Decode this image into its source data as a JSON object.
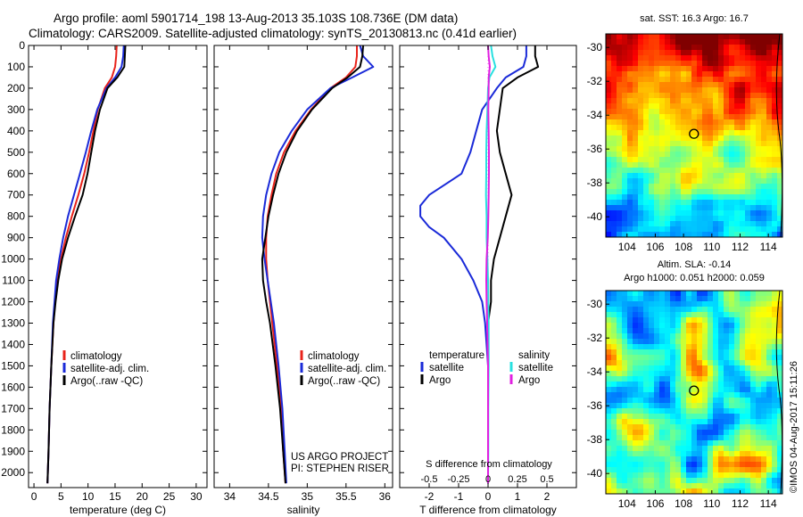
{
  "header": {
    "line1": "Argo profile: aoml 5901714_198 13-Aug-2013 35.103S 108.736E (DM data)",
    "line2": "Climatology: CARS2009. Satellite-adjusted climatology: synTS_20130813.nc (0.41d earlier)"
  },
  "colors": {
    "climatology": "#e8221a",
    "satellite": "#1a2ad8",
    "argo": "#000000",
    "salinity_satellite": "#28e0e0",
    "salinity_argo": "#e020e0"
  },
  "legend": {
    "climatology": "climatology",
    "satellite": "satellite-adj. clim.",
    "argo": "Argo(..raw -QC)"
  },
  "diff_legend": {
    "temperature": "temperature",
    "salinity": "salinity",
    "satellite": "satellite",
    "argo": "Argo"
  },
  "credits": {
    "project": "US ARGO PROJECT",
    "pi": "PI: STEPHEN RISER"
  },
  "sst_map": {
    "title": "sat. SST: 16.3 Argo: 16.7",
    "marker": {
      "lon": 108.736,
      "lat": -35.103
    }
  },
  "sla_map": {
    "title1": "Altim. SLA: -0.14",
    "title2": "Argo h1000: 0.051 h2000: 0.059",
    "marker": {
      "lon": 108.736,
      "lat": -35.103
    }
  },
  "watermark": "©IMOS 04-Aug-2017 15:11:26",
  "chart_data": [
    {
      "type": "line",
      "panel": "temperature",
      "xlabel": "temperature (deg C)",
      "ylabel": "",
      "xlim": [
        -1,
        32
      ],
      "ylim": [
        2070,
        0
      ],
      "x_ticks": [
        0,
        5,
        10,
        15,
        20,
        25,
        30
      ],
      "y_ticks": [
        0,
        100,
        200,
        300,
        400,
        500,
        600,
        700,
        800,
        900,
        1000,
        1100,
        1200,
        1300,
        1400,
        1500,
        1600,
        1700,
        1800,
        1900,
        2000
      ],
      "series": [
        {
          "name": "climatology",
          "y": [
            0,
            50,
            100,
            150,
            200,
            300,
            400,
            500,
            600,
            700,
            800,
            900,
            1000,
            1100,
            1200,
            1300,
            1500,
            1700,
            1900,
            2050
          ],
          "x": [
            15.3,
            15.2,
            15.0,
            14.4,
            13.1,
            11.8,
            11.0,
            10.2,
            9.3,
            8.2,
            7.0,
            5.9,
            5.0,
            4.3,
            3.9,
            3.6,
            3.2,
            2.9,
            2.7,
            2.5
          ]
        },
        {
          "name": "satellite-adj. clim.",
          "y": [
            0,
            50,
            100,
            150,
            200,
            300,
            400,
            500,
            600,
            700,
            800,
            900,
            1000,
            1100,
            1200,
            1300,
            1500,
            1700,
            1900,
            2050
          ],
          "x": [
            16.6,
            16.5,
            16.2,
            15.0,
            13.4,
            11.7,
            10.6,
            9.6,
            8.5,
            7.4,
            6.3,
            5.4,
            4.7,
            4.1,
            3.8,
            3.5,
            3.2,
            2.9,
            2.7,
            2.5
          ]
        },
        {
          "name": "Argo(..raw -QC)",
          "y": [
            0,
            50,
            100,
            150,
            200,
            300,
            400,
            500,
            600,
            700,
            800,
            900,
            1000,
            1100,
            1200,
            1300,
            1500,
            1700,
            1900,
            2050
          ],
          "x": [
            16.9,
            16.8,
            16.7,
            15.4,
            13.6,
            12.2,
            11.3,
            10.6,
            9.9,
            9.0,
            7.6,
            6.3,
            5.2,
            4.5,
            4.0,
            3.6,
            3.2,
            2.9,
            2.7,
            2.5
          ]
        }
      ]
    },
    {
      "type": "line",
      "panel": "salinity",
      "xlabel": "salinity",
      "ylabel": "",
      "xlim": [
        33.8,
        36.1
      ],
      "ylim": [
        2070,
        0
      ],
      "x_ticks": [
        34,
        34.5,
        35,
        35.5,
        36
      ],
      "series": [
        {
          "name": "climatology",
          "y": [
            0,
            50,
            100,
            150,
            200,
            300,
            400,
            500,
            600,
            700,
            800,
            900,
            1000,
            1100,
            1200,
            1300,
            1500,
            1700,
            1900,
            2050
          ],
          "x": [
            35.64,
            35.64,
            35.62,
            35.5,
            35.3,
            35.05,
            34.85,
            34.7,
            34.6,
            34.54,
            34.49,
            34.47,
            34.47,
            34.49,
            34.52,
            34.55,
            34.61,
            34.66,
            34.69,
            34.72
          ]
        },
        {
          "name": "satellite-adj. clim.",
          "y": [
            0,
            50,
            100,
            150,
            200,
            300,
            400,
            500,
            600,
            700,
            800,
            900,
            1000,
            1100,
            1200,
            1300,
            1500,
            1700,
            1900,
            2050
          ],
          "x": [
            35.68,
            35.72,
            35.85,
            35.58,
            35.3,
            35.0,
            34.8,
            34.64,
            34.54,
            34.47,
            34.43,
            34.42,
            34.45,
            34.49,
            34.53,
            34.57,
            34.63,
            34.68,
            34.71,
            34.73
          ]
        },
        {
          "name": "Argo(..raw -QC)",
          "y": [
            0,
            50,
            100,
            150,
            200,
            300,
            400,
            500,
            600,
            700,
            800,
            900,
            1000,
            1100,
            1200,
            1300,
            1500,
            1700,
            1900,
            2050
          ],
          "x": [
            35.72,
            35.71,
            35.68,
            35.52,
            35.32,
            35.06,
            34.87,
            34.73,
            34.63,
            34.56,
            34.5,
            34.46,
            34.42,
            34.43,
            34.47,
            34.52,
            34.59,
            34.65,
            34.69,
            34.72
          ]
        }
      ]
    },
    {
      "type": "line",
      "panel": "difference",
      "xlabel": "T difference from climatology",
      "title_top": "S difference from climatology",
      "xlim": [
        -3,
        3
      ],
      "ylim": [
        2070,
        0
      ],
      "x_ticks": [
        -2,
        -1,
        0,
        1,
        2
      ],
      "x_ticks_top_labels": [
        "-0.5",
        "-0.25",
        "0",
        "0.25",
        "0.5"
      ],
      "series": [
        {
          "name": "temperature satellite",
          "y": [
            0,
            50,
            100,
            150,
            200,
            300,
            400,
            500,
            600,
            700,
            750,
            800,
            850,
            900,
            1000,
            1100,
            1200,
            1300,
            1500,
            1700,
            1900,
            2050
          ],
          "x": [
            1.3,
            1.3,
            1.2,
            0.6,
            0.3,
            -0.2,
            -0.4,
            -0.6,
            -0.9,
            -2.0,
            -2.3,
            -2.3,
            -2.0,
            -1.5,
            -0.9,
            -0.5,
            -0.2,
            -0.1,
            0.0,
            0.0,
            0.0,
            0.0
          ]
        },
        {
          "name": "temperature Argo",
          "y": [
            0,
            50,
            100,
            150,
            200,
            300,
            400,
            500,
            600,
            700,
            800,
            900,
            1000,
            1100,
            1200,
            1300,
            1500,
            1700,
            1900,
            2050
          ],
          "x": [
            1.6,
            1.6,
            1.7,
            1.0,
            0.5,
            0.4,
            0.3,
            0.4,
            0.6,
            0.8,
            0.6,
            0.4,
            0.2,
            0.1,
            0.1,
            0.0,
            0.0,
            0.0,
            0.0,
            0.0
          ]
        },
        {
          "name": "salinity satellite",
          "y": [
            0,
            50,
            100,
            150,
            200,
            300,
            400,
            500,
            600,
            700,
            800,
            900,
            1000,
            1100,
            1200,
            1300,
            1500,
            1700,
            1900,
            2050
          ],
          "x": [
            0.1,
            0.15,
            0.25,
            0.05,
            0.0,
            -0.02,
            -0.05,
            -0.06,
            -0.06,
            -0.07,
            -0.05,
            -0.05,
            -0.02,
            0.0,
            0.01,
            0.02,
            0.02,
            0.01,
            0.01,
            0.0
          ]
        },
        {
          "name": "salinity Argo",
          "y": [
            0,
            50,
            100,
            150,
            200,
            300,
            400,
            500,
            600,
            700,
            800,
            900,
            1000,
            1100,
            1200,
            1300,
            1500,
            1700,
            1900,
            2050
          ],
          "x": [
            0.0,
            0.02,
            0.06,
            0.02,
            0.02,
            0.01,
            0.02,
            0.03,
            0.03,
            0.02,
            0.01,
            -0.01,
            -0.05,
            -0.06,
            -0.05,
            -0.03,
            0.0,
            0.0,
            0.0,
            0.0
          ]
        }
      ]
    },
    {
      "type": "heatmap",
      "panel": "sst_map",
      "xlim": [
        102.5,
        115.0
      ],
      "ylim": [
        -41.2,
        -29.2
      ],
      "x_ticks": [
        104,
        106,
        108,
        110,
        112,
        114
      ],
      "y_ticks": [
        -30,
        -32,
        -34,
        -36,
        -38,
        -40
      ]
    },
    {
      "type": "heatmap",
      "panel": "sla_map",
      "xlim": [
        102.5,
        115.0
      ],
      "ylim": [
        -41.2,
        -29.2
      ],
      "x_ticks": [
        104,
        106,
        108,
        110,
        112,
        114
      ],
      "y_ticks": [
        -30,
        -32,
        -34,
        -36,
        -38,
        -40
      ]
    }
  ]
}
